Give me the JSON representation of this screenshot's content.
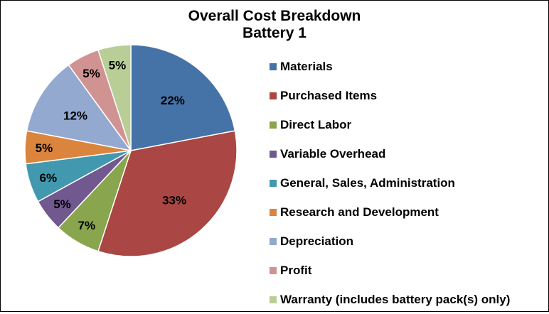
{
  "chart_data": {
    "type": "pie",
    "title": "Overall Cost Breakdown",
    "subtitle": "Battery 1",
    "categories": [
      "Materials",
      "Purchased Items",
      "Direct Labor",
      "Variable Overhead",
      "General, Sales, Administration",
      "Research and Development",
      "Depreciation",
      "Profit",
      "Warranty (includes battery pack(s) only)"
    ],
    "values": [
      22,
      33,
      7,
      5,
      6,
      5,
      12,
      5,
      5
    ],
    "data_labels": [
      "22%",
      "33%",
      "7%",
      "5%",
      "6%",
      "5%",
      "12%",
      "5%",
      "5%"
    ],
    "colors": [
      "#4572A7",
      "#AA4643",
      "#89A54E",
      "#71588F",
      "#4198AF",
      "#DB843D",
      "#93A9CF",
      "#D19392",
      "#B9CD96"
    ],
    "legend_position": "right",
    "start": "12 o'clock, clockwise"
  }
}
